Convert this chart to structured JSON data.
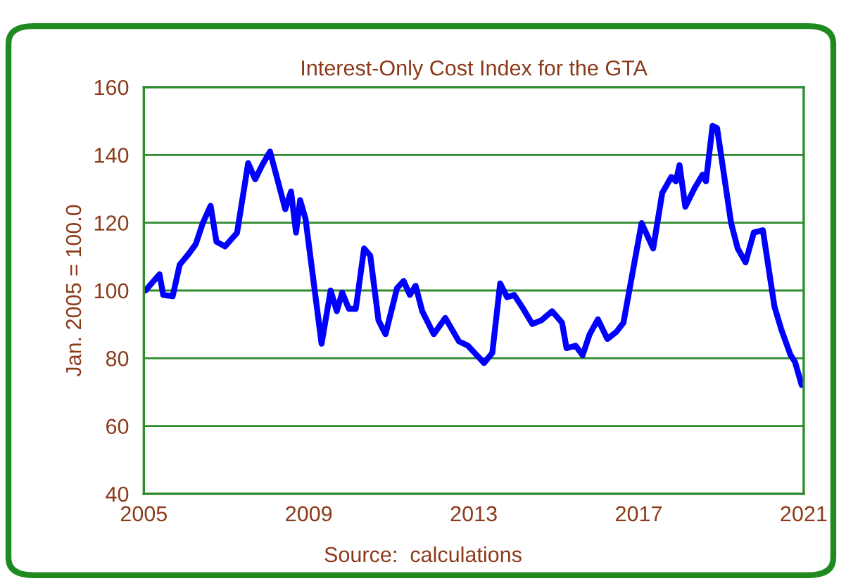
{
  "chart_data": {
    "type": "line",
    "title": "Interest-Only Cost Index for the GTA",
    "ylabel": "Jan. 2005 = 100.0",
    "annotations": [
      "Source:  calculations"
    ],
    "series": [
      {
        "color": "#0000ff",
        "x": [
          2005.04,
          2005.38,
          2005.47,
          2005.7,
          2005.87,
          2006.1,
          2006.26,
          2006.43,
          2006.62,
          2006.76,
          2006.97,
          2007.26,
          2007.53,
          2007.7,
          2007.87,
          2008.06,
          2008.43,
          2008.57,
          2008.69,
          2008.79,
          2008.92,
          2009.31,
          2009.53,
          2009.68,
          2009.81,
          2009.97,
          2010.14,
          2010.34,
          2010.49,
          2010.69,
          2010.86,
          2011.14,
          2011.3,
          2011.45,
          2011.59,
          2011.75,
          2012.03,
          2012.31,
          2012.64,
          2012.86,
          2013.25,
          2013.45,
          2013.64,
          2013.81,
          2013.98,
          2014.2,
          2014.42,
          2014.64,
          2014.9,
          2015.14,
          2015.25,
          2015.47,
          2015.64,
          2015.81,
          2016.01,
          2016.24,
          2016.46,
          2016.63,
          2017.07,
          2017.35,
          2017.57,
          2017.79,
          2017.9,
          2017.99,
          2018.13,
          2018.35,
          2018.55,
          2018.63,
          2018.79,
          2018.9,
          2019.24,
          2019.4,
          2019.59,
          2019.79,
          2020.01,
          2020.29,
          2020.46,
          2020.68,
          2020.79,
          2020.95
        ],
        "values": [
          100,
          104.8,
          98.7,
          98.3,
          107.6,
          111,
          113.7,
          119.9,
          125,
          114.4,
          113,
          117,
          137.6,
          132.8,
          137,
          141,
          124,
          129.2,
          117.1,
          126.7,
          121.2,
          84.3,
          100,
          93.9,
          99.4,
          94.6,
          94.6,
          112.4,
          110.3,
          91.2,
          87.1,
          100.7,
          102.8,
          98.7,
          101.4,
          93.9,
          87.1,
          91.9,
          85,
          83.7,
          78.6,
          81.6,
          102.1,
          98,
          98.7,
          94.6,
          90.1,
          91.2,
          93.9,
          90.5,
          83,
          83.7,
          80.9,
          87.1,
          91.5,
          85.7,
          87.8,
          90.5,
          119.9,
          112.4,
          128.8,
          133.5,
          132.2,
          137,
          124.7,
          130.1,
          134.2,
          132.2,
          148.6,
          147.9,
          119.9,
          112.4,
          108.3,
          117.1,
          117.8,
          95.3,
          88.4,
          81,
          78.9,
          72.1
        ]
      }
    ],
    "xlim": [
      2005,
      2021
    ],
    "xticks": [
      2005,
      2009,
      2013,
      2017,
      2021
    ],
    "ylim": [
      40,
      160
    ],
    "yticks": [
      40,
      60,
      80,
      100,
      120,
      140,
      160
    ],
    "grid": "y",
    "legend": false,
    "marker": "none",
    "line_style": "solid"
  }
}
